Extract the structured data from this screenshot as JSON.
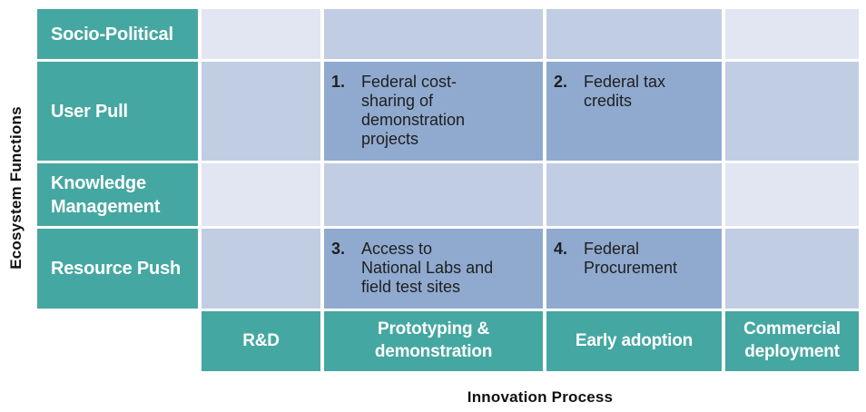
{
  "axes": {
    "y_label": "Ecosystem Functions",
    "x_label": "Innovation Process"
  },
  "matrix": {
    "row_headers": [
      "Socio-Political",
      "User Pull",
      "Knowledge\nManagement",
      "Resource Push"
    ],
    "column_headers": [
      "R&D",
      "Prototyping &\ndemonstration",
      "Early adoption",
      "Commercial\ndeployment"
    ],
    "entries": [
      {
        "number": "1.",
        "text": "Federal cost-\nsharing of\ndemonstration\nprojects",
        "row": "User Pull",
        "column": "Prototyping & demonstration"
      },
      {
        "number": "2.",
        "text": "Federal tax\ncredits",
        "row": "User Pull",
        "column": "Early adoption"
      },
      {
        "number": "3.",
        "text": "Access to\nNational Labs and\nfield test sites",
        "row": "Resource Push",
        "column": "Prototyping & demonstration"
      },
      {
        "number": "4.",
        "text": "Federal\nProcurement",
        "row": "Resource Push",
        "column": "Early adoption"
      }
    ]
  },
  "colors": {
    "header_teal": "#45a7a2",
    "cell_light": "#e2e6f2",
    "cell_medium": "#c1cde3",
    "cell_dark": "#90aacf",
    "header_text": "#ffffff",
    "body_text": "#1e1e1e"
  }
}
